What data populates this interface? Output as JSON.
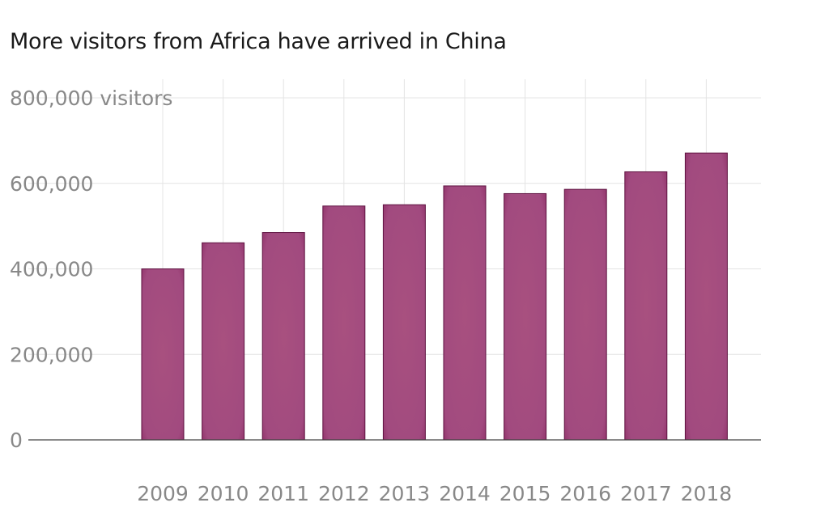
{
  "chart_data": {
    "type": "bar",
    "title": "More visitors from Africa have arrived in China",
    "xlabel": "",
    "ylabel": "",
    "categories": [
      "2009",
      "2010",
      "2011",
      "2012",
      "2013",
      "2014",
      "2015",
      "2016",
      "2017",
      "2018"
    ],
    "values": [
      400000,
      461000,
      485000,
      547000,
      550000,
      594000,
      576000,
      586000,
      627000,
      671000
    ],
    "ylim": [
      0,
      800000
    ],
    "y_ticks": [
      {
        "value": 0,
        "label": "0"
      },
      {
        "value": 200000,
        "label": "200,000"
      },
      {
        "value": 400000,
        "label": "400,000"
      },
      {
        "value": 600000,
        "label": "600,000"
      },
      {
        "value": 800000,
        "label": "800,000 visitors"
      }
    ],
    "grid": true,
    "legend": "none",
    "colors": {
      "bar_fill": "#a14a7f",
      "bar_stroke": "#5e1240",
      "grid": "#e4e4e4",
      "baseline": "#444444",
      "tick_text": "#888888",
      "title_text": "#1a1a1a"
    }
  }
}
